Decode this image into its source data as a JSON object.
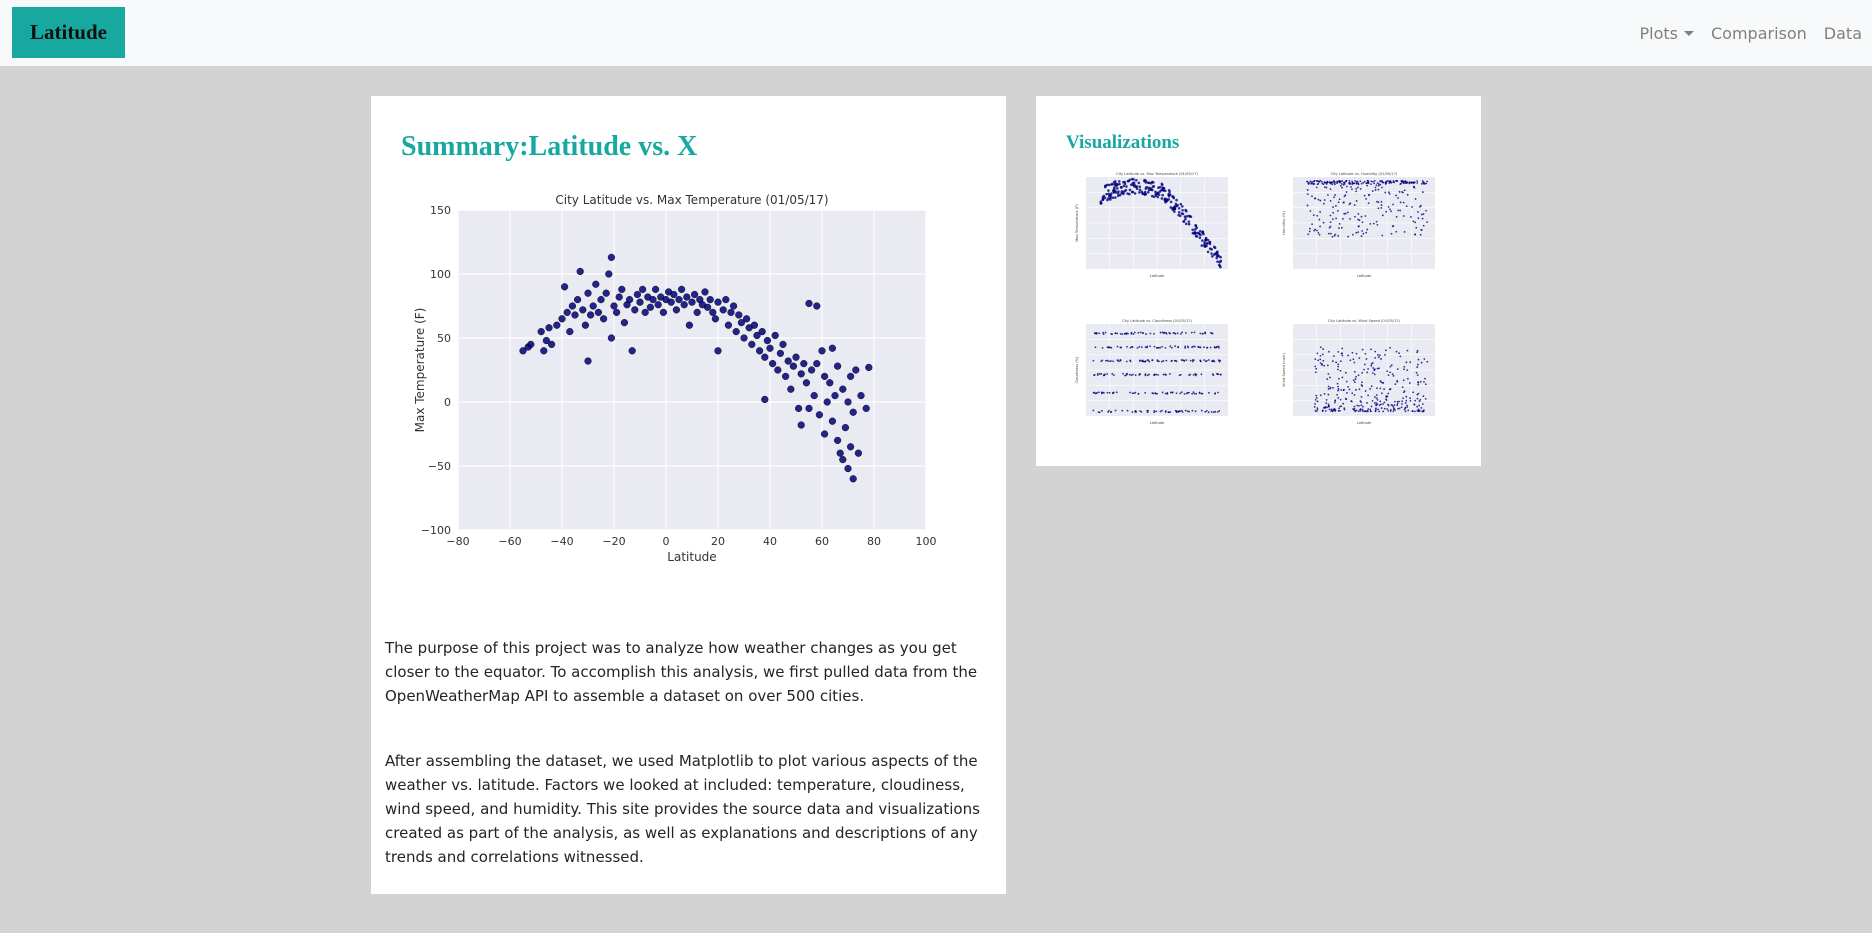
{
  "navbar": {
    "brand": "Latitude",
    "links": [
      {
        "label": "Plots",
        "dropdown": true
      },
      {
        "label": "Comparison"
      },
      {
        "label": "Data"
      }
    ]
  },
  "main": {
    "title": "Summary:Latitude vs. X",
    "paragraphs": [
      "The purpose of this project was to analyze how weather changes as you get closer to the equator. To accomplish this analysis, we first pulled data from the OpenWeatherMap API to assemble a dataset on over 500 cities.",
      "After assembling the dataset, we used Matplotlib to plot various aspects of the weather vs. latitude. Factors we looked at included: temperature, cloudiness, wind speed, and humidity. This site provides the source data and visualizations created as part of the analysis, as well as explanations and descriptions of any trends and correlations witnessed."
    ]
  },
  "visualizations": {
    "title": "Visualizations"
  },
  "colors": {
    "accent": "#17a8a0",
    "point": "#00007a",
    "plot_bg": "#eaeaf2",
    "page_bg": "#d3d3d3"
  },
  "chart_data": [
    {
      "type": "scatter",
      "title": "City Latitude vs. Max Temperature (01/05/17)",
      "xlabel": "Latitude",
      "ylabel": "Max Temperature (F)",
      "xlim": [
        -80,
        100
      ],
      "ylim": [
        -100,
        150
      ],
      "xticks": [
        -80,
        -60,
        -40,
        -20,
        0,
        20,
        40,
        60,
        80,
        100
      ],
      "yticks": [
        -100,
        -50,
        0,
        50,
        100,
        150
      ],
      "grid": true,
      "points": [
        [
          -55,
          40
        ],
        [
          -53,
          43
        ],
        [
          -52,
          45
        ],
        [
          -48,
          55
        ],
        [
          -47,
          40
        ],
        [
          -46,
          48
        ],
        [
          -45,
          58
        ],
        [
          -44,
          45
        ],
        [
          -42,
          60
        ],
        [
          -40,
          65
        ],
        [
          -39,
          90
        ],
        [
          -38,
          70
        ],
        [
          -37,
          55
        ],
        [
          -36,
          75
        ],
        [
          -35,
          68
        ],
        [
          -34,
          80
        ],
        [
          -33,
          102
        ],
        [
          -32,
          72
        ],
        [
          -31,
          60
        ],
        [
          -30,
          85
        ],
        [
          -30,
          32
        ],
        [
          -29,
          68
        ],
        [
          -28,
          75
        ],
        [
          -27,
          92
        ],
        [
          -26,
          70
        ],
        [
          -25,
          80
        ],
        [
          -24,
          65
        ],
        [
          -23,
          85
        ],
        [
          -22,
          100
        ],
        [
          -21,
          113
        ],
        [
          -21,
          50
        ],
        [
          -20,
          75
        ],
        [
          -19,
          70
        ],
        [
          -18,
          82
        ],
        [
          -17,
          88
        ],
        [
          -16,
          62
        ],
        [
          -15,
          76
        ],
        [
          -14,
          80
        ],
        [
          -13,
          40
        ],
        [
          -12,
          72
        ],
        [
          -11,
          84
        ],
        [
          -10,
          78
        ],
        [
          -9,
          88
        ],
        [
          -8,
          70
        ],
        [
          -7,
          82
        ],
        [
          -6,
          74
        ],
        [
          -5,
          80
        ],
        [
          -4,
          88
        ],
        [
          -3,
          76
        ],
        [
          -2,
          82
        ],
        [
          -1,
          70
        ],
        [
          0,
          80
        ],
        [
          1,
          86
        ],
        [
          2,
          78
        ],
        [
          3,
          84
        ],
        [
          4,
          72
        ],
        [
          5,
          80
        ],
        [
          6,
          88
        ],
        [
          7,
          76
        ],
        [
          8,
          82
        ],
        [
          9,
          60
        ],
        [
          10,
          78
        ],
        [
          11,
          84
        ],
        [
          12,
          70
        ],
        [
          13,
          80
        ],
        [
          14,
          76
        ],
        [
          15,
          86
        ],
        [
          16,
          74
        ],
        [
          17,
          80
        ],
        [
          18,
          70
        ],
        [
          19,
          65
        ],
        [
          20,
          78
        ],
        [
          20,
          40
        ],
        [
          22,
          72
        ],
        [
          23,
          80
        ],
        [
          24,
          60
        ],
        [
          25,
          70
        ],
        [
          26,
          75
        ],
        [
          27,
          55
        ],
        [
          28,
          68
        ],
        [
          29,
          62
        ],
        [
          30,
          50
        ],
        [
          31,
          65
        ],
        [
          32,
          58
        ],
        [
          33,
          45
        ],
        [
          34,
          60
        ],
        [
          35,
          52
        ],
        [
          36,
          40
        ],
        [
          37,
          55
        ],
        [
          38,
          35
        ],
        [
          38,
          2
        ],
        [
          39,
          48
        ],
        [
          40,
          42
        ],
        [
          41,
          30
        ],
        [
          42,
          52
        ],
        [
          43,
          25
        ],
        [
          44,
          38
        ],
        [
          45,
          45
        ],
        [
          46,
          20
        ],
        [
          47,
          32
        ],
        [
          48,
          10
        ],
        [
          49,
          28
        ],
        [
          50,
          35
        ],
        [
          51,
          -5
        ],
        [
          52,
          22
        ],
        [
          52,
          -18
        ],
        [
          53,
          30
        ],
        [
          54,
          15
        ],
        [
          55,
          77
        ],
        [
          55,
          -5
        ],
        [
          56,
          25
        ],
        [
          57,
          5
        ],
        [
          58,
          30
        ],
        [
          58,
          75
        ],
        [
          59,
          -10
        ],
        [
          60,
          40
        ],
        [
          61,
          20
        ],
        [
          61,
          -25
        ],
        [
          62,
          0
        ],
        [
          63,
          15
        ],
        [
          64,
          -15
        ],
        [
          64,
          42
        ],
        [
          65,
          5
        ],
        [
          66,
          -30
        ],
        [
          66,
          28
        ],
        [
          67,
          -40
        ],
        [
          68,
          10
        ],
        [
          68,
          -45
        ],
        [
          69,
          -20
        ],
        [
          70,
          0
        ],
        [
          70,
          -52
        ],
        [
          71,
          20
        ],
        [
          71,
          -35
        ],
        [
          72,
          -60
        ],
        [
          72,
          -8
        ],
        [
          73,
          25
        ],
        [
          74,
          -40
        ],
        [
          75,
          5
        ],
        [
          77,
          -5
        ],
        [
          78,
          27
        ]
      ]
    },
    {
      "type": "scatter",
      "title": "City Latitude vs. Max Temperature (01/05/17)",
      "xlabel": "Latitude",
      "ylabel": "Max Temperature (F)"
    },
    {
      "type": "scatter",
      "title": "City Latitude vs. Humidity (01/05/17)",
      "xlabel": "Latitude",
      "ylabel": "Humidity (%)"
    },
    {
      "type": "scatter",
      "title": "City Latitude vs. Cloudiness (01/05/17)",
      "xlabel": "Latitude",
      "ylabel": "Cloudiness (%)"
    },
    {
      "type": "scatter",
      "title": "City Latitude vs. Wind Speed (01/05/17)",
      "xlabel": "Latitude",
      "ylabel": "Wind Speed (mph)"
    }
  ]
}
